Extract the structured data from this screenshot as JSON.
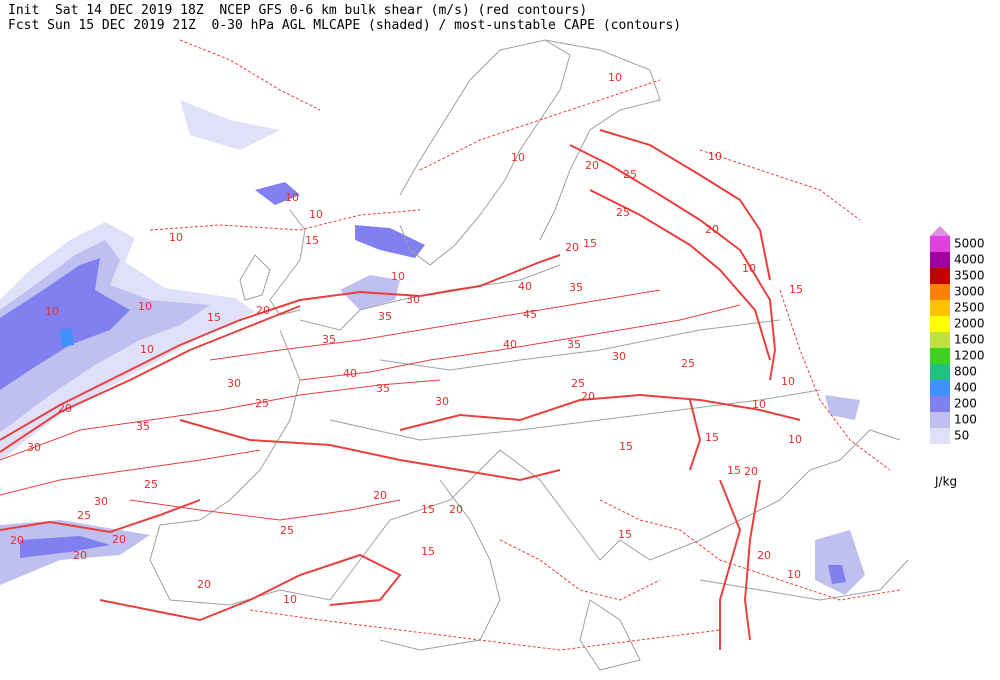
{
  "header": {
    "line1": "Init  Sat 14 DEC 2019 18Z  NCEP GFS 0-6 km bulk shear (m/s) (red contours)",
    "line2": "Fcst Sun 15 DEC 2019 21Z  0-30 hPa AGL MLCAPE (shaded) / most-unstable CAPE (contours)"
  },
  "colorbar": {
    "levels": [
      5000,
      4000,
      3500,
      3000,
      2500,
      2000,
      1600,
      1200,
      800,
      400,
      200,
      100,
      50
    ],
    "colors": [
      "#e040e0",
      "#a000a0",
      "#c00000",
      "#ff8000",
      "#ffc000",
      "#ffff00",
      "#c0e040",
      "#40d020",
      "#20c080",
      "#4090ff",
      "#8080f0",
      "#c0c0f0",
      "#e0e0f8"
    ],
    "top_color": "#e090e0",
    "unit": "J/kg"
  },
  "contour_labels": [
    10,
    10,
    10,
    15,
    20,
    10,
    10,
    15,
    10,
    30,
    35,
    35,
    40,
    35,
    30,
    30,
    25,
    20,
    35,
    30,
    25,
    30,
    25,
    20,
    20,
    20,
    20,
    25,
    20,
    20,
    15,
    40,
    35,
    45,
    40,
    35,
    30,
    25,
    25,
    20,
    15,
    20,
    15,
    20,
    25,
    25,
    20,
    10,
    15,
    10,
    15,
    10,
    10,
    20,
    15,
    15,
    15,
    20,
    10,
    10,
    10,
    10,
    10,
    10
  ]
}
